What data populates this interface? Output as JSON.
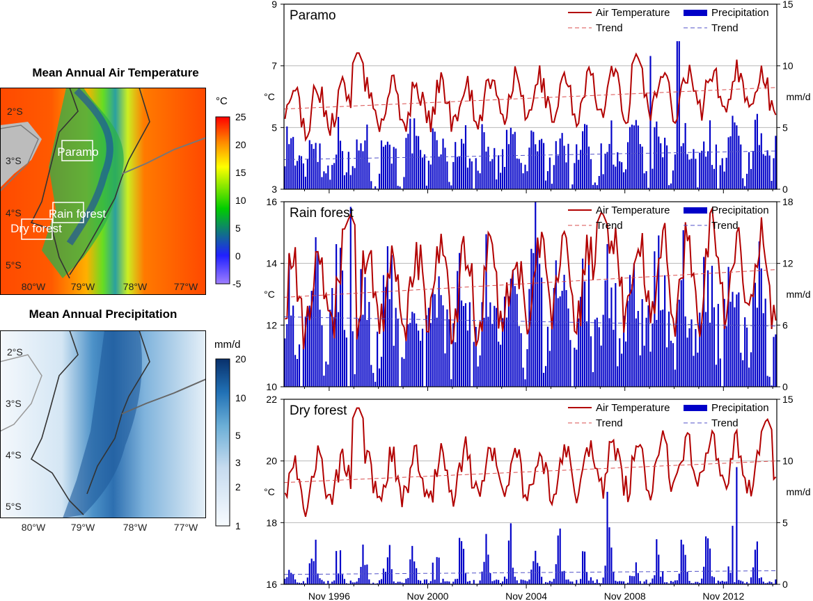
{
  "maps": [
    {
      "title": "Mean Annual Air Temperature",
      "lat_labels": [
        "2°S",
        "3°S",
        "4°S",
        "5°S"
      ],
      "lon_labels": [
        "80°W",
        "79°W",
        "78°W",
        "77°W"
      ],
      "colorbar": {
        "unit": "°C",
        "ticks": [
          "25",
          "20",
          "15",
          "10",
          "5",
          "0",
          "-5"
        ],
        "colors": [
          "#ff0000",
          "#ffff00",
          "#00cc00",
          "#0000ff",
          "#9f7fff"
        ]
      },
      "site_labels": [
        "Paramo",
        "Rain forest",
        "Dry forest"
      ]
    },
    {
      "title": "Mean Annual Precipitation",
      "lat_labels": [
        "2°S",
        "3°S",
        "4°S",
        "5°S"
      ],
      "lon_labels": [
        "80°W",
        "79°W",
        "78°W",
        "77°W"
      ],
      "colorbar": {
        "unit": "mm/d",
        "ticks": [
          "20",
          "10",
          "5",
          "3",
          "2",
          "1"
        ],
        "colors": [
          "#08306b",
          "#2171b5",
          "#6baed6",
          "#c6dbef",
          "#f7fbff"
        ]
      }
    }
  ],
  "legend": {
    "temp": "Air Temperature",
    "precip": "Precipitation",
    "trend": "Trend"
  },
  "x_ticks": [
    "Nov 1996",
    "Nov 2000",
    "Nov 2004",
    "Nov 2008",
    "Nov 2012"
  ],
  "colors": {
    "temperature": "#b20000",
    "precipitation": "#0000c8",
    "temp_trend": "#d94c4c",
    "precip_trend": "#5050c8"
  },
  "chart_data": [
    {
      "type": "line+bar",
      "title": "Paramo",
      "x_range": [
        "1995-01",
        "2014-12"
      ],
      "ylabel_left": "°C",
      "ylabel_right": "mm/d",
      "ylim_left": [
        3,
        9
      ],
      "yticks_left": [
        3,
        5,
        7,
        9
      ],
      "ylim_right": [
        0,
        15
      ],
      "yticks_right": [
        0,
        5,
        10,
        15
      ],
      "temp_base": 5.8,
      "temp_amp": 0.65,
      "temp_trend": [
        5.6,
        6.3
      ],
      "precip_base": 2.4,
      "precip_amp": 2.2,
      "precip_trend": [
        2.4,
        3.1
      ],
      "temp_peaks": [
        {
          "x": 1998.0,
          "y": 7.5
        },
        {
          "x": 2009.3,
          "y": 7.4
        }
      ],
      "precip_peaks": [
        {
          "x": 2009.9,
          "y": 10.8
        },
        {
          "x": 2011.0,
          "y": 12.0
        }
      ]
    },
    {
      "type": "line+bar",
      "title": "Rain forest",
      "x_range": [
        "1995-01",
        "2014-12"
      ],
      "ylabel_left": "°C",
      "ylabel_right": "mm/d",
      "ylim_left": [
        10,
        16
      ],
      "yticks_left": [
        10,
        12,
        14,
        16
      ],
      "ylim_right": [
        0,
        18
      ],
      "yticks_right": [
        0,
        6,
        12,
        18
      ],
      "temp_base": 13.5,
      "temp_amp": 1.3,
      "temp_trend": [
        12.9,
        13.8
      ],
      "precip_base": 6.0,
      "precip_amp": 5.5,
      "precip_trend": [
        6.8,
        5.9
      ],
      "temp_peaks": [
        {
          "x": 1997.7,
          "y": 15.6
        },
        {
          "x": 2007.9,
          "y": 15.7
        }
      ],
      "precip_peaks": [
        {
          "x": 1997.7,
          "y": 17.5
        },
        {
          "x": 2005.2,
          "y": 18.0
        }
      ]
    },
    {
      "type": "line+bar",
      "title": "Dry forest",
      "x_range": [
        "1995-01",
        "2014-12"
      ],
      "ylabel_left": "°C",
      "ylabel_right": "mm/d",
      "ylim_left": [
        16,
        22
      ],
      "yticks_left": [
        16,
        18,
        20,
        22
      ],
      "ylim_right": [
        0,
        15
      ],
      "yticks_right": [
        0,
        5,
        10,
        15
      ],
      "temp_base": 19.4,
      "temp_amp": 0.75,
      "temp_trend": [
        19.3,
        20.0
      ],
      "precip_base": 0.6,
      "precip_amp": 2.2,
      "precip_trend": [
        0.8,
        1.1
      ],
      "temp_peaks": [
        {
          "x": 1998.0,
          "y": 21.8
        },
        {
          "x": 2014.6,
          "y": 21.4
        }
      ],
      "precip_peaks": [
        {
          "x": 2013.4,
          "y": 9.5
        },
        {
          "x": 2008.1,
          "y": 7.5
        }
      ]
    }
  ]
}
